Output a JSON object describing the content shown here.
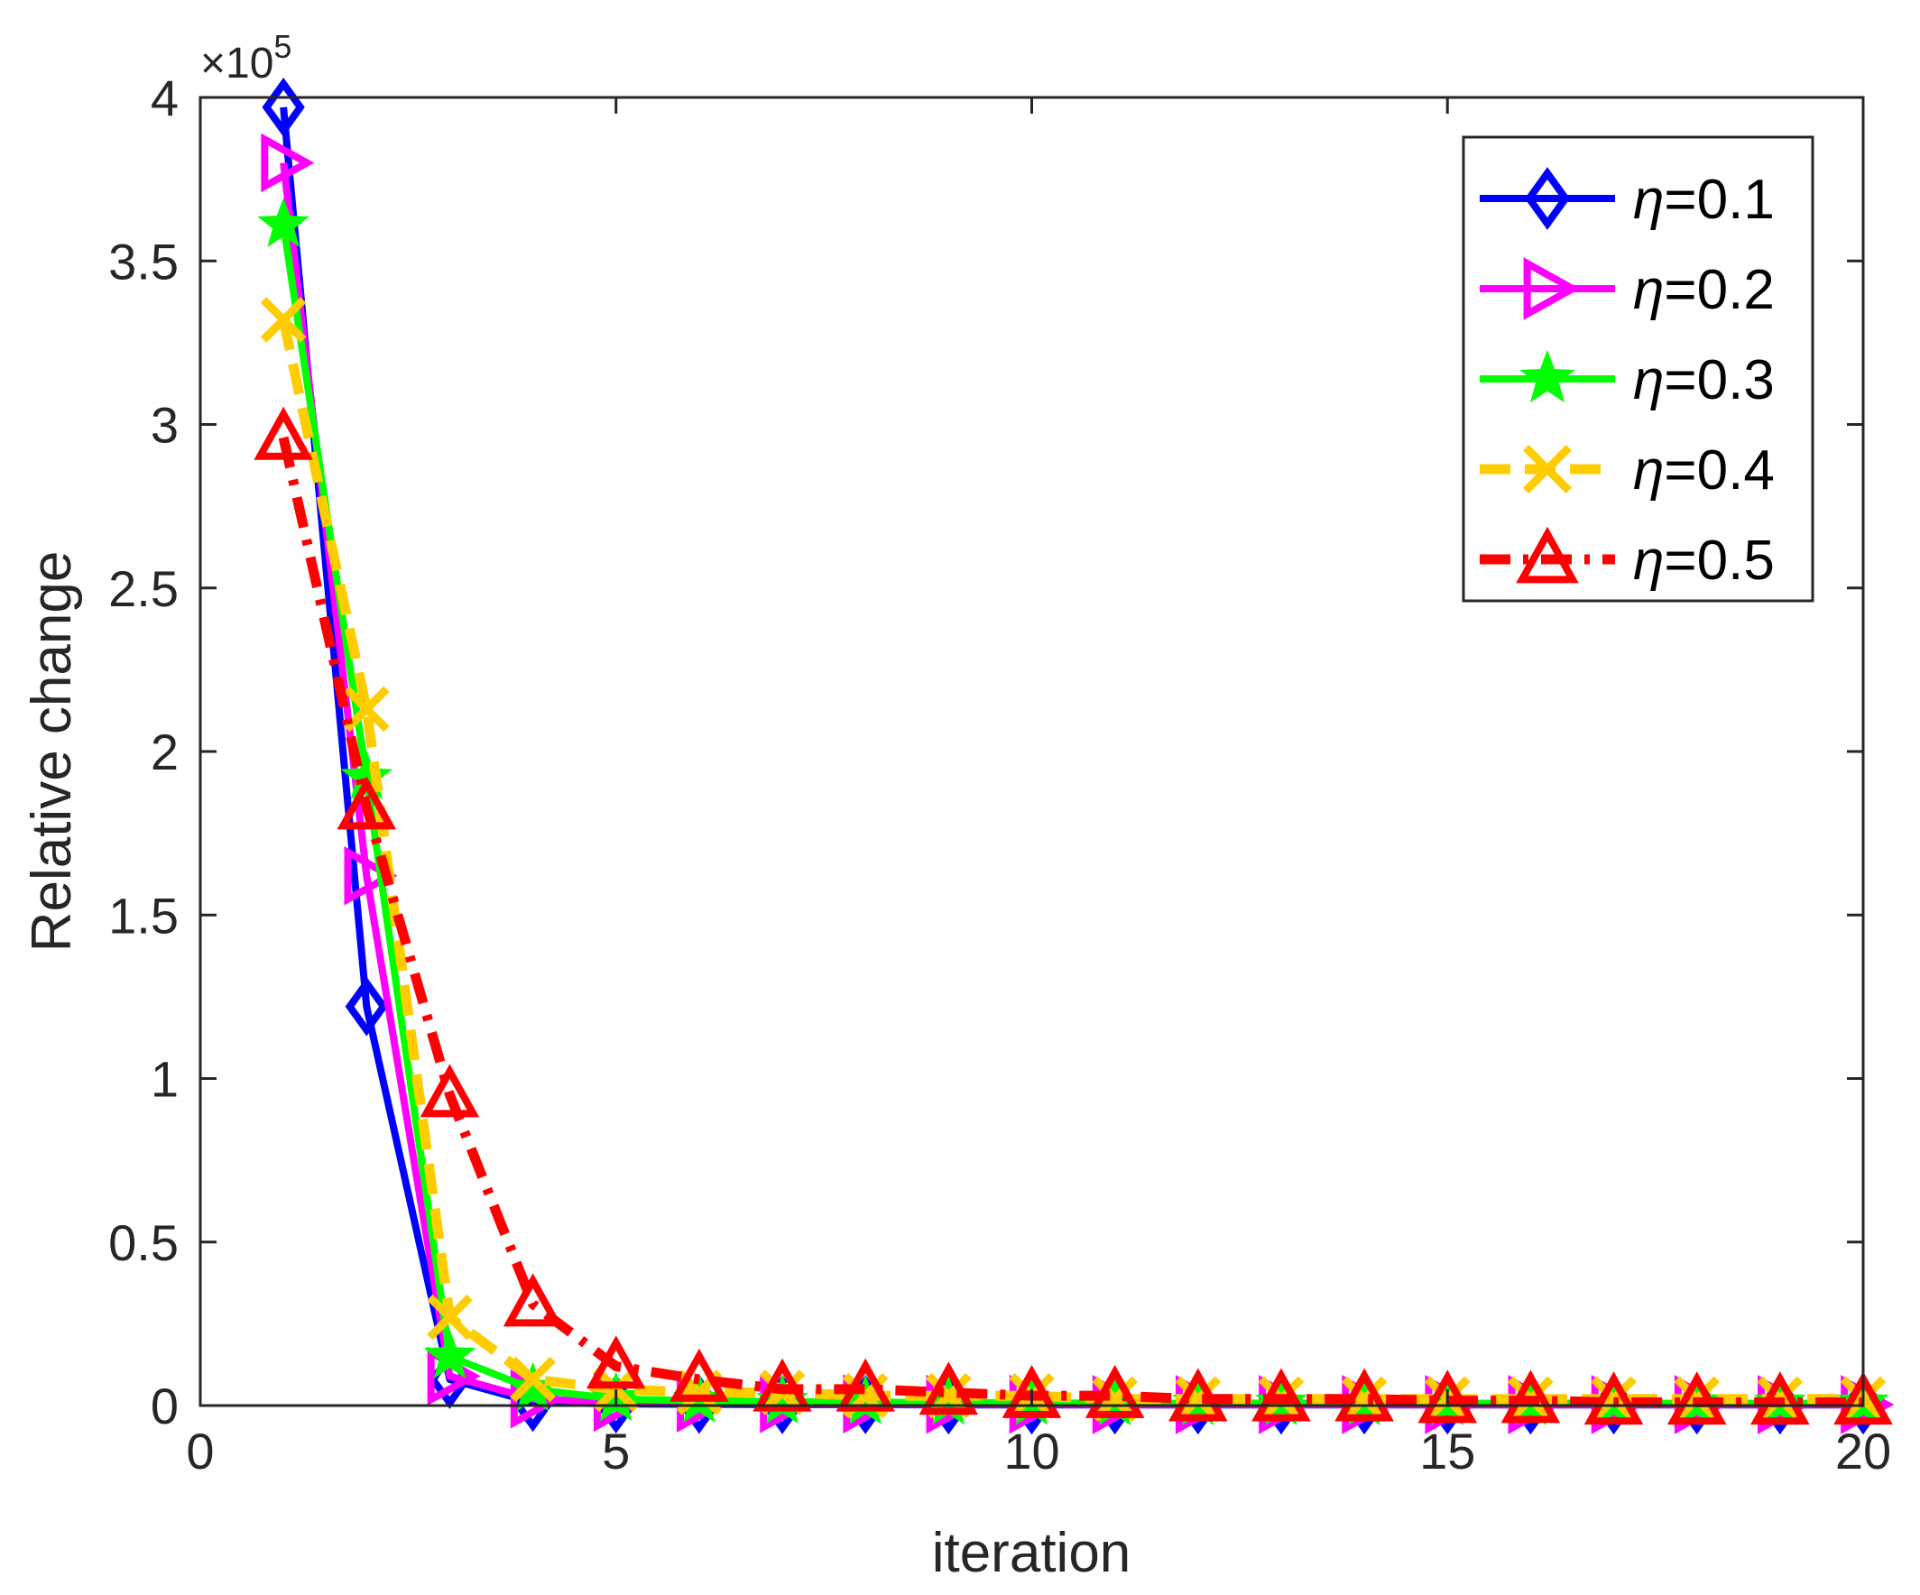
{
  "colors": {
    "axis": "#262626",
    "background": "#ffffff"
  },
  "chart_data": {
    "type": "line",
    "title": "",
    "xlabel": "iteration",
    "ylabel": "Relative change",
    "xlim": [
      0,
      20
    ],
    "ylim": [
      0,
      400000
    ],
    "xticks": [
      0,
      5,
      10,
      15,
      20
    ],
    "xtick_labels": [
      "0",
      "5",
      "10",
      "15",
      "20"
    ],
    "yticks": [
      0,
      50000,
      100000,
      150000,
      200000,
      250000,
      300000,
      350000,
      400000
    ],
    "ytick_labels": [
      "0",
      "0.5",
      "1",
      "1.5",
      "2",
      "2.5",
      "3",
      "3.5",
      "4"
    ],
    "y_exponent": {
      "prefix": "×10",
      "power": "5"
    },
    "grid": false,
    "legend_position": "top-right",
    "x": [
      1,
      2,
      3,
      4,
      5,
      6,
      7,
      8,
      9,
      10,
      11,
      12,
      13,
      14,
      15,
      16,
      17,
      18,
      19,
      20
    ],
    "series": [
      {
        "name": "η=0.1",
        "symbol": "η",
        "rest": "=0.1",
        "color": "#0000ff",
        "marker": "diamond",
        "dash": "solid",
        "values": [
          397000,
          122000,
          8000,
          1000,
          500,
          400,
          300,
          300,
          200,
          200,
          200,
          200,
          200,
          200,
          200,
          200,
          200,
          200,
          200,
          200
        ]
      },
      {
        "name": "η=0.2",
        "symbol": "η",
        "rest": "=0.2",
        "color": "#ff00ff",
        "marker": "triangle-right",
        "dash": "solid",
        "values": [
          380000,
          162000,
          9000,
          2000,
          1000,
          800,
          600,
          500,
          400,
          400,
          300,
          300,
          300,
          300,
          300,
          300,
          300,
          300,
          300,
          300
        ]
      },
      {
        "name": "η=0.3",
        "symbol": "η",
        "rest": "=0.3",
        "color": "#00ff00",
        "marker": "star",
        "dash": "solid",
        "values": [
          361000,
          192000,
          15000,
          5000,
          2000,
          1500,
          1200,
          1000,
          900,
          800,
          700,
          700,
          700,
          700,
          700,
          700,
          700,
          700,
          700,
          700
        ]
      },
      {
        "name": "η=0.4",
        "symbol": "η",
        "rest": "=0.4",
        "color": "#ffcc00",
        "marker": "x",
        "dash": "dashed",
        "values": [
          332000,
          213000,
          27000,
          8000,
          5000,
          4000,
          4000,
          3000,
          3000,
          3000,
          2000,
          2000,
          2000,
          2000,
          2000,
          2000,
          2000,
          2000,
          2000,
          2000
        ]
      },
      {
        "name": "η=0.5",
        "symbol": "η",
        "rest": "=0.5",
        "color": "#ff0000",
        "marker": "triangle-up",
        "dash": "dashdot",
        "values": [
          296000,
          183000,
          95000,
          31000,
          12000,
          8000,
          5000,
          5000,
          4000,
          3000,
          3000,
          2000,
          2000,
          2000,
          1500,
          1500,
          1000,
          1000,
          1000,
          1000
        ]
      }
    ]
  }
}
